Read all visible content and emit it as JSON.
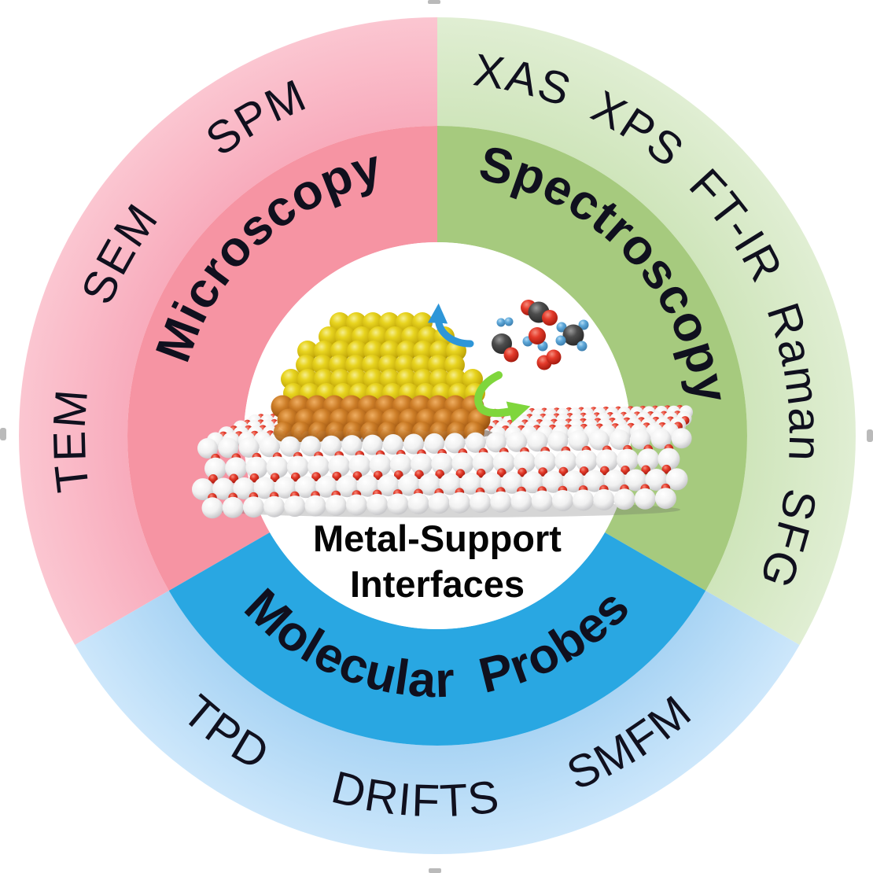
{
  "figure": {
    "type": "three-sector-donut-diagram",
    "center": {
      "title_line1": "Metal-Support",
      "title_line2": "Interfaces",
      "illustration": {
        "nanoparticle_icon": "gold-nanoparticle-icon",
        "interface_layer_icon": "copper-interface-layer-icon",
        "support_icon": "oxide-support-slab-icon",
        "molecule_icons": [
          "co2-molecule-icon",
          "h2-molecule-icon",
          "co-molecule-icon",
          "h2o-molecule-icon",
          "ch4-molecule-icon",
          "o2-molecule-icon"
        ],
        "arrow_icons": [
          "desorption-arrow-icon",
          "spillover-arrow-icon"
        ]
      }
    },
    "sectors": [
      {
        "label": "Microscopy",
        "techniques": "TEM SEM SPM",
        "inner_color": "#f694a3",
        "outer_color_inner": "#f8abbc",
        "outer_color_outer": "#fbc6d1"
      },
      {
        "label": "Spectroscopy",
        "techniques": "XAS XPS FT-IR Raman SFG",
        "inner_color": "#a6ca7e",
        "outer_color_inner": "#cfe5bb",
        "outer_color_outer": "#e0eed3"
      },
      {
        "label": "Molecular Probes",
        "techniques": "TPD DRIFTS SMFM",
        "inner_color": "#29a7e2",
        "outer_color_inner": "#a9d4f4",
        "outer_color_outer": "#cde7fb"
      }
    ],
    "palette": {
      "text": "#10101e",
      "title_text": "#050505",
      "gold": "#e0cb16",
      "copper": "#c27524",
      "support_white": "#ececec",
      "oxygen_red": "#e03226",
      "carbon_gray": "#474747",
      "hydrogen_blue": "#58a5d8",
      "arrow_blue": "#2e96d8",
      "arrow_green": "#7fd63c",
      "edge_mark": "#a9a9a9",
      "center_background": "#ffffff"
    }
  }
}
